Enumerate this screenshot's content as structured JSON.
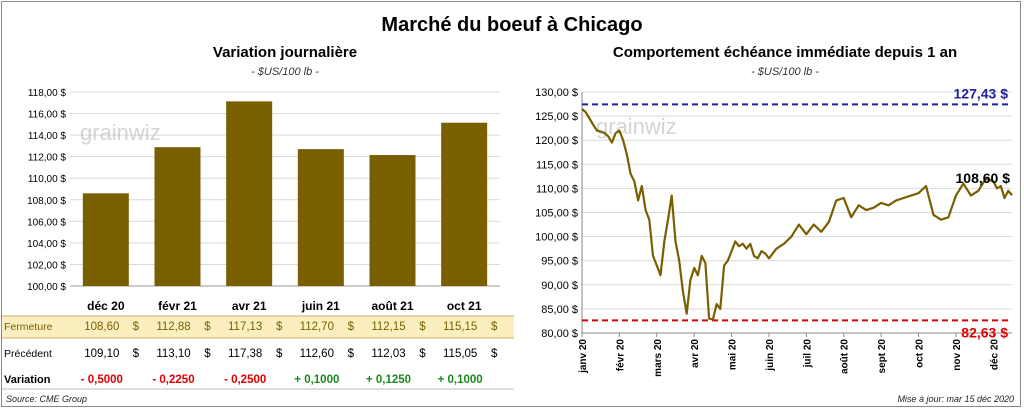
{
  "title": "Marché du boeuf à Chicago",
  "footer": {
    "source": "Source: CME Group",
    "updated": "Mise à jour: mar 15 déc 2020"
  },
  "watermark": "grainwiz",
  "chart_data": [
    {
      "type": "bar",
      "title": "Variation journalière",
      "unit": "- $US/100 lb -",
      "categories": [
        "déc 20",
        "févr 21",
        "avr 21",
        "juin 21",
        "août 21",
        "oct 21"
      ],
      "values": [
        108.6,
        112.88,
        117.13,
        112.7,
        112.15,
        115.15
      ],
      "ylim": [
        100,
        118
      ],
      "yticks": [
        "100,00 $",
        "102,00 $",
        "104,00 $",
        "106,00 $",
        "108,00 $",
        "110,00 $",
        "112,00 $",
        "114,00 $",
        "116,00 $",
        "118,00 $"
      ],
      "bar_color": "#7a5f00",
      "table": {
        "rows": [
          {
            "label": "Fermeture",
            "cells": [
              "108,60",
              "112,88",
              "117,13",
              "112,70",
              "112,15",
              "115,15"
            ],
            "suffix": "$",
            "highlight": true
          },
          {
            "label": "Précédent",
            "cells": [
              "109,10",
              "113,10",
              "117,38",
              "112,60",
              "112,03",
              "115,05"
            ],
            "suffix": "$",
            "highlight": false
          },
          {
            "label": "Variation",
            "cells": [
              "- 0,5000",
              "- 0,2250",
              "- 0,2500",
              "+ 0,1000",
              "+ 0,1250",
              "+ 0,1000"
            ],
            "suffix": "",
            "highlight": false
          }
        ],
        "negative_color": "#e00000",
        "positive_color": "#1a8a1a"
      }
    },
    {
      "type": "line",
      "title": "Comportement  échéance immédiate depuis 1 an",
      "unit": "- $US/100 lb -",
      "ylim": [
        80,
        130
      ],
      "yticks": [
        "80,00 $",
        "85,00 $",
        "90,00 $",
        "95,00 $",
        "100,00 $",
        "105,00 $",
        "110,00 $",
        "115,00 $",
        "120,00 $",
        "125,00 $",
        "130,00 $"
      ],
      "xticks": [
        "janv 20",
        "févr 20",
        "mars 20",
        "avr 20",
        "mai 20",
        "juin 20",
        "juil 20",
        "août 20",
        "sept 20",
        "oct 20",
        "nov 20",
        "déc 20"
      ],
      "series_color": "#7a5f00",
      "max": {
        "value": 127.43,
        "label": "127,43 $",
        "color": "#2020a0"
      },
      "min": {
        "value": 82.63,
        "label": "82,63 $",
        "color": "#e00000"
      },
      "last": {
        "value": 108.6,
        "label": "108,60 $"
      },
      "x": [
        0,
        0.1,
        0.2,
        0.3,
        0.4,
        0.5,
        0.6,
        0.7,
        0.8,
        0.9,
        1.0,
        1.1,
        1.2,
        1.3,
        1.4,
        1.5,
        1.6,
        1.7,
        1.8,
        1.9,
        2.0,
        2.1,
        2.2,
        2.3,
        2.4,
        2.5,
        2.6,
        2.7,
        2.8,
        2.9,
        3.0,
        3.1,
        3.2,
        3.3,
        3.4,
        3.5,
        3.6,
        3.7,
        3.8,
        3.9,
        4.0,
        4.1,
        4.2,
        4.3,
        4.4,
        4.5,
        4.6,
        4.7,
        4.8,
        4.9,
        5.0,
        5.2,
        5.4,
        5.6,
        5.8,
        6.0,
        6.2,
        6.4,
        6.6,
        6.8,
        7.0,
        7.2,
        7.4,
        7.6,
        7.8,
        8.0,
        8.2,
        8.4,
        8.6,
        8.8,
        9.0,
        9.2,
        9.4,
        9.6,
        9.8,
        10.0,
        10.2,
        10.4,
        10.6,
        10.8,
        11.0,
        11.1,
        11.2,
        11.3,
        11.4,
        11.5
      ],
      "values": [
        126.5,
        125.8,
        124.5,
        123.2,
        122.0,
        121.8,
        121.5,
        120.8,
        119.5,
        121.5,
        122.0,
        120.0,
        117.0,
        113.0,
        111.5,
        107.5,
        110.5,
        105.5,
        103.5,
        96.0,
        94.0,
        92.0,
        99.0,
        103.5,
        108.5,
        99.0,
        95.0,
        88.5,
        84.0,
        91.0,
        93.5,
        92.0,
        96.0,
        94.5,
        83.0,
        82.8,
        86.0,
        85.0,
        94.0,
        95.0,
        97.0,
        99.0,
        98.0,
        98.5,
        97.5,
        98.5,
        96.0,
        95.5,
        97.0,
        96.5,
        95.5,
        97.5,
        98.5,
        100.0,
        102.5,
        100.5,
        102.5,
        101.0,
        103.0,
        107.5,
        108.0,
        104.0,
        106.5,
        105.5,
        106.0,
        107.0,
        106.5,
        107.5,
        108.0,
        108.5,
        109.0,
        110.5,
        104.5,
        103.5,
        104.0,
        108.5,
        111.0,
        108.5,
        109.5,
        112.0,
        111.5,
        110.0,
        110.5,
        108.0,
        109.5,
        108.6
      ]
    }
  ]
}
